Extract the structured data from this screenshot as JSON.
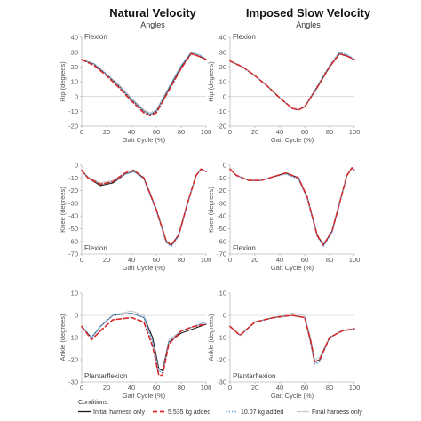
{
  "columns": [
    {
      "title": "Natural Velocity",
      "subtitle": "Angles"
    },
    {
      "title": "Imposed Slow Velocity",
      "subtitle": "Angles"
    }
  ],
  "legend": {
    "heading": "Conditions:",
    "items": [
      {
        "label": "Initial harness only",
        "color": "#1a1a1a",
        "dash": "solid"
      },
      {
        "label": "5.535 kg added",
        "color": "#d62728",
        "dash": "dashed"
      },
      {
        "label": "10.07 kg added",
        "color": "#6fa8dc",
        "dash": "dotted"
      },
      {
        "label": "Final harness only",
        "color": "#c8c8c8",
        "dash": "solid"
      }
    ]
  },
  "chart_data": [
    {
      "type": "line",
      "title": "Natural Velocity",
      "subtitle": "Angles",
      "xlabel": "Gait Cycle (%)",
      "ylabel": "Hip (degrees)",
      "annotation": "Flexion",
      "xlim": [
        0,
        100
      ],
      "ylim": [
        -20,
        40
      ],
      "xticks": [
        "0",
        "20",
        "40",
        "60",
        "80",
        "100"
      ],
      "yticks": [
        "-20",
        "-10",
        "0",
        "10",
        "20",
        "30",
        "40"
      ],
      "x": [
        0,
        10,
        20,
        30,
        40,
        50,
        55,
        60,
        70,
        80,
        88,
        95,
        100
      ],
      "series": [
        {
          "name": "Initial harness only",
          "values": [
            25,
            22,
            15,
            7,
            -2,
            -10,
            -12,
            -10,
            5,
            20,
            29,
            27,
            25
          ]
        },
        {
          "name": "5.535 kg added",
          "values": [
            25,
            21,
            14,
            6,
            -3,
            -11,
            -13,
            -11,
            4,
            19,
            29,
            27,
            25
          ]
        },
        {
          "name": "10.07 kg added",
          "values": [
            25,
            22,
            15,
            7,
            -2,
            -10,
            -12,
            -10,
            6,
            21,
            30,
            28,
            25
          ]
        },
        {
          "name": "Final harness only",
          "values": [
            25,
            22,
            15,
            8,
            -1,
            -9,
            -11,
            -9,
            6,
            21,
            30,
            28,
            25
          ]
        }
      ]
    },
    {
      "type": "line",
      "title": "Imposed Slow Velocity",
      "subtitle": "Angles",
      "xlabel": "Gait Cycle (%)",
      "ylabel": "Hip (degrees)",
      "annotation": "Flexion",
      "xlim": [
        0,
        100
      ],
      "ylim": [
        -20,
        40
      ],
      "xticks": [
        "0",
        "20",
        "40",
        "60",
        "80",
        "100"
      ],
      "yticks": [
        "-20",
        "-10",
        "0",
        "10",
        "20",
        "30",
        "40"
      ],
      "x": [
        0,
        10,
        20,
        30,
        40,
        50,
        55,
        60,
        70,
        80,
        88,
        95,
        100
      ],
      "series": [
        {
          "name": "Initial harness only",
          "values": [
            24,
            20,
            14,
            7,
            -1,
            -8,
            -9,
            -7,
            6,
            20,
            29,
            27,
            25
          ]
        },
        {
          "name": "5.535 kg added",
          "values": [
            24,
            20,
            14,
            7,
            -1,
            -8,
            -9,
            -7,
            6,
            20,
            29,
            27,
            25
          ]
        },
        {
          "name": "10.07 kg added",
          "values": [
            24,
            20,
            14,
            7,
            -1,
            -8,
            -9,
            -7,
            7,
            21,
            30,
            28,
            25
          ]
        },
        {
          "name": "Final harness only",
          "values": [
            24,
            20,
            14,
            7,
            -1,
            -8,
            -9,
            -7,
            6,
            20,
            29,
            27,
            25
          ]
        }
      ]
    },
    {
      "type": "line",
      "title": "Natural Velocity",
      "subtitle": "",
      "xlabel": "Gait Cycle (%)",
      "ylabel": "Knee (degrees)",
      "annotation": "Flexion",
      "xlim": [
        0,
        100
      ],
      "ylim": [
        -70,
        0
      ],
      "xticks": [
        "0",
        "20",
        "40",
        "60",
        "80",
        "100"
      ],
      "yticks": [
        "0",
        "-10",
        "-20",
        "-30",
        "-40",
        "-50",
        "-60",
        "-70"
      ],
      "x": [
        0,
        5,
        15,
        25,
        35,
        42,
        50,
        60,
        68,
        72,
        78,
        85,
        92,
        96,
        100
      ],
      "series": [
        {
          "name": "Initial harness only",
          "values": [
            -4,
            -10,
            -16,
            -14,
            -7,
            -5,
            -10,
            -35,
            -60,
            -63,
            -55,
            -30,
            -8,
            -3,
            -5
          ]
        },
        {
          "name": "5.535 kg added",
          "values": [
            -4,
            -10,
            -15,
            -13,
            -6,
            -4,
            -10,
            -35,
            -60,
            -63,
            -55,
            -30,
            -8,
            -3,
            -5
          ]
        },
        {
          "name": "10.07 kg added",
          "values": [
            -4,
            -10,
            -15,
            -13,
            -7,
            -5,
            -11,
            -36,
            -61,
            -64,
            -56,
            -31,
            -8,
            -3,
            -5
          ]
        },
        {
          "name": "Final harness only",
          "values": [
            -4,
            -9,
            -14,
            -12,
            -6,
            -4,
            -10,
            -35,
            -60,
            -63,
            -55,
            -30,
            -8,
            -3,
            -5
          ]
        }
      ]
    },
    {
      "type": "line",
      "title": "Imposed Slow Velocity",
      "subtitle": "",
      "xlabel": "Gait Cycle (%)",
      "ylabel": "Knee (degrees)",
      "annotation": "Flexion",
      "xlim": [
        0,
        100
      ],
      "ylim": [
        -70,
        0
      ],
      "xticks": [
        "0",
        "20",
        "40",
        "60",
        "80",
        "100"
      ],
      "yticks": [
        "0",
        "-10",
        "-20",
        "-30",
        "-40",
        "-50",
        "-60",
        "-70"
      ],
      "x": [
        0,
        5,
        15,
        25,
        35,
        45,
        55,
        62,
        70,
        75,
        82,
        88,
        94,
        98,
        100
      ],
      "series": [
        {
          "name": "Initial harness only",
          "values": [
            -3,
            -8,
            -12,
            -12,
            -9,
            -6,
            -10,
            -25,
            -55,
            -63,
            -52,
            -30,
            -8,
            -2,
            -4
          ]
        },
        {
          "name": "5.535 kg added",
          "values": [
            -3,
            -8,
            -12,
            -12,
            -9,
            -6,
            -10,
            -25,
            -55,
            -63,
            -52,
            -30,
            -8,
            -2,
            -4
          ]
        },
        {
          "name": "10.07 kg added",
          "values": [
            -3,
            -8,
            -12,
            -12,
            -9,
            -7,
            -11,
            -26,
            -56,
            -64,
            -53,
            -31,
            -8,
            -2,
            -4
          ]
        },
        {
          "name": "Final harness only",
          "values": [
            -3,
            -8,
            -12,
            -12,
            -9,
            -6,
            -10,
            -25,
            -55,
            -63,
            -52,
            -30,
            -8,
            -2,
            -4
          ]
        }
      ]
    },
    {
      "type": "line",
      "title": "Natural Velocity",
      "subtitle": "",
      "xlabel": "Gait Cycle (%)",
      "ylabel": "Ankle (degrees)",
      "annotation": "Plantarflexion",
      "xlim": [
        0,
        100
      ],
      "ylim": [
        -30,
        10
      ],
      "xticks": [
        "0",
        "20",
        "40",
        "60",
        "80",
        "100"
      ],
      "yticks": [
        "-30",
        "-20",
        "-10",
        "0",
        "10"
      ],
      "x": [
        0,
        8,
        15,
        25,
        40,
        50,
        57,
        62,
        65,
        70,
        80,
        90,
        100
      ],
      "series": [
        {
          "name": "Initial harness only",
          "values": [
            -5,
            -10,
            -5,
            0,
            1,
            -1,
            -10,
            -24,
            -25,
            -12,
            -8,
            -6,
            -4
          ]
        },
        {
          "name": "5.535 kg added",
          "values": [
            -5,
            -11,
            -7,
            -2,
            -1,
            -3,
            -14,
            -27,
            -27,
            -13,
            -7,
            -5,
            -4
          ]
        },
        {
          "name": "10.07 kg added",
          "values": [
            -5,
            -10,
            -5,
            0,
            1,
            -1,
            -12,
            -25,
            -26,
            -12,
            -7,
            -5,
            -3
          ]
        },
        {
          "name": "Final harness only",
          "values": [
            -5,
            -10,
            -5,
            0,
            2,
            0,
            -10,
            -24,
            -25,
            -11,
            -7,
            -5,
            -3
          ]
        }
      ]
    },
    {
      "type": "line",
      "title": "Imposed Slow Velocity",
      "subtitle": "",
      "xlabel": "Gait Cycle (%)",
      "ylabel": "Ankle (degrees)",
      "annotation": "Plantarflexion",
      "xlim": [
        0,
        100
      ],
      "ylim": [
        -30,
        10
      ],
      "xticks": [
        "0",
        "20",
        "40",
        "60",
        "80",
        "100"
      ],
      "yticks": [
        "-30",
        "-20",
        "-10",
        "0",
        "10"
      ],
      "x": [
        0,
        8,
        20,
        35,
        50,
        60,
        65,
        68,
        72,
        80,
        90,
        100
      ],
      "series": [
        {
          "name": "Initial harness only",
          "values": [
            -5,
            -9,
            -3,
            -1,
            0,
            -1,
            -12,
            -21,
            -20,
            -10,
            -7,
            -6
          ]
        },
        {
          "name": "5.535 kg added",
          "values": [
            -5,
            -9,
            -3,
            -1,
            0,
            -1,
            -12,
            -21,
            -20,
            -10,
            -7,
            -6
          ]
        },
        {
          "name": "10.07 kg added",
          "values": [
            -5,
            -9,
            -3,
            -1,
            0,
            -1,
            -13,
            -22,
            -21,
            -10,
            -7,
            -6
          ]
        },
        {
          "name": "Final harness only",
          "values": [
            -5,
            -9,
            -3,
            -1,
            1,
            0,
            -11,
            -20,
            -19,
            -10,
            -7,
            -6
          ]
        }
      ]
    }
  ]
}
